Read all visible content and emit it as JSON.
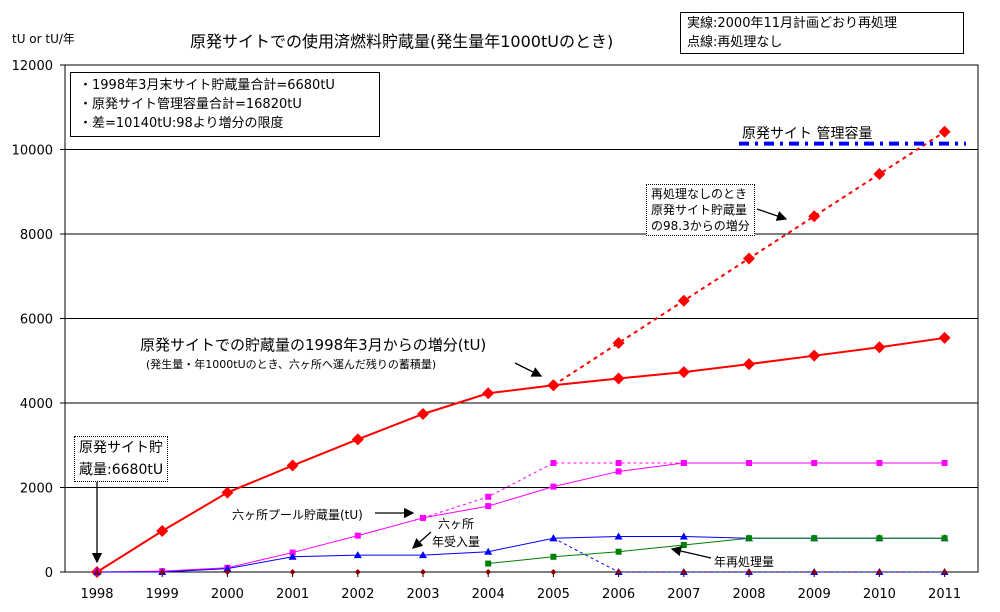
{
  "chart_data": {
    "type": "line",
    "title": "原発サイトでの使用済燃料貯蔵量(発生量年1000tUのとき)",
    "ylabel": "tU or tU/年",
    "ylim": [
      0,
      12000
    ],
    "yticks": [
      0,
      2000,
      4000,
      6000,
      8000,
      10000,
      12000
    ],
    "grid": "horizontal",
    "categories": [
      "1998",
      "1999",
      "2000",
      "2001",
      "2002",
      "2003",
      "2004",
      "2005",
      "2006",
      "2007",
      "2008",
      "2009",
      "2010",
      "2011"
    ],
    "legend_lines": [
      "実線:2000年11月計画どおり再処理",
      "点線:再処理なし"
    ],
    "info_lines": [
      "・1998年3月末サイト貯蔵量合計=6680tU",
      "・原発サイト管理容量合計=16820tU",
      "・差=10140tU:98より増分の限度"
    ],
    "series": [
      {
        "name": "原発サイトでの貯蔵量の1998年3月からの増分(tU)",
        "style": "solid",
        "color": "#ff0000",
        "marker": "diamond",
        "values": [
          0,
          970,
          1880,
          2520,
          3140,
          3740,
          4230,
          4420,
          4580,
          4730,
          4920,
          5120,
          5320,
          5540
        ]
      },
      {
        "name": "再処理なしのとき 原発サイト貯蔵量の98.3からの増分",
        "style": "dashed",
        "color": "#ff0000",
        "marker": "diamond",
        "values": [
          null,
          null,
          null,
          null,
          null,
          null,
          null,
          4420,
          5420,
          6420,
          7420,
          8420,
          9420,
          10420
        ]
      },
      {
        "name": "六ヶ所プール貯蔵量(tU)",
        "style": "solid",
        "color": "#ff00ff",
        "marker": "square",
        "values": [
          0,
          20,
          100,
          460,
          860,
          1280,
          1560,
          2020,
          2380,
          2580,
          2580,
          2580,
          2580,
          2580
        ]
      },
      {
        "name": "六ヶ所プール貯蔵量(tU) 再処理なし",
        "style": "dashed",
        "color": "#ff00ff",
        "marker": "square",
        "values": [
          null,
          null,
          null,
          null,
          null,
          1280,
          1780,
          2580,
          2580,
          2580,
          null,
          null,
          null,
          null
        ]
      },
      {
        "name": "六ヶ所 年受入量",
        "style": "solid",
        "color": "#0000ff",
        "marker": "triangle",
        "values": [
          0,
          0,
          80,
          360,
          400,
          400,
          480,
          800,
          840,
          840,
          800,
          800,
          800,
          800
        ]
      },
      {
        "name": "六ヶ所 年受入量 再処理なし",
        "style": "dashed",
        "color": "#0000ff",
        "marker": "triangle",
        "values": [
          null,
          null,
          null,
          null,
          null,
          null,
          null,
          800,
          0,
          0,
          0,
          0,
          0,
          0
        ]
      },
      {
        "name": "年再処理量",
        "style": "solid",
        "color": "#008000",
        "marker": "square",
        "values": [
          null,
          null,
          null,
          null,
          null,
          null,
          200,
          360,
          480,
          640,
          800,
          800,
          800,
          800
        ]
      },
      {
        "name": "年再処理量 再処理なし",
        "style": "none",
        "color": "#8b0000",
        "marker": "diamond-small",
        "values": [
          0,
          0,
          0,
          0,
          0,
          0,
          0,
          0,
          0,
          0,
          0,
          0,
          0,
          0
        ]
      },
      {
        "name": "原発サイト管理容量",
        "style": "dashdot",
        "color": "#0000ff",
        "marker": "none",
        "values": [
          null,
          null,
          null,
          null,
          null,
          null,
          null,
          null,
          null,
          null,
          10140,
          10140,
          10140,
          10140
        ]
      }
    ],
    "annotations": {
      "capacity": "原発サイト 管理容量",
      "no_reproc_1": "再処理なしのとき",
      "no_reproc_2": "原発サイト貯蔵量",
      "no_reproc_3": "の98.3からの増分",
      "main_1": "原発サイトでの貯蔵量の1998年3月からの増分(tU)",
      "main_2": "(発生量・年1000tUのとき、六ヶ所へ運んだ残りの蓄積量)",
      "initial_1": "原発サイト貯",
      "initial_2": "蔵量:6680tU",
      "pool": "六ヶ所プール貯蔵量(tU)",
      "receive_1": "六ヶ所",
      "receive_2": "年受入量",
      "reproc": "年再処理量"
    }
  }
}
